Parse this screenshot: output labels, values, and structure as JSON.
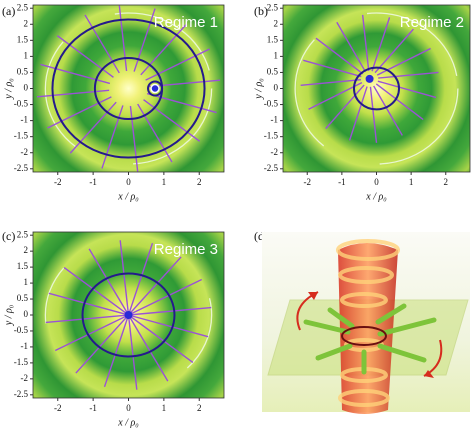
{
  "chart_data": [
    {
      "type": "field",
      "panel": "(a)",
      "title": "Regime 1",
      "xlabel": "x / ρ₀",
      "ylabel": "y / ρ₀",
      "xlim": [
        -2.7,
        2.7
      ],
      "ylim": [
        -2.6,
        2.6
      ],
      "xticks": [
        -2,
        -1,
        0,
        1,
        2
      ],
      "yticks": [
        2.5,
        2,
        1.5,
        1,
        0.5,
        0,
        -0.5,
        -1,
        -1.5,
        -2,
        -2.5
      ],
      "marker": {
        "x": 0.75,
        "y": 0
      },
      "circles": [
        0.95,
        2.15
      ]
    },
    {
      "type": "field",
      "panel": "(b)",
      "title": "Regime 2",
      "xlabel": "x / ρ₀",
      "ylabel": "y / ρ₀",
      "xlim": [
        -2.7,
        2.7
      ],
      "ylim": [
        -2.6,
        2.6
      ],
      "xticks": [
        -2,
        -1,
        0,
        1,
        2
      ],
      "yticks": [
        2.5,
        2,
        1.5,
        1,
        0.5,
        0,
        -0.5,
        -1,
        -1.5,
        -2,
        -2.5
      ],
      "marker": {
        "x": -0.2,
        "y": 0.3
      },
      "circles": [
        0.65
      ]
    },
    {
      "type": "field",
      "panel": "(c)",
      "title": "Regime 3",
      "xlabel": "x / ρ₀",
      "ylabel": "y / ρ₀",
      "xlim": [
        -2.7,
        2.7
      ],
      "ylim": [
        -2.6,
        2.6
      ],
      "xticks": [
        -2,
        -1,
        0,
        1,
        2
      ],
      "yticks": [
        2.5,
        2,
        1.5,
        1,
        0.5,
        0,
        -0.5,
        -1,
        -1.5,
        -2,
        -2.5
      ],
      "marker": {
        "x": 0,
        "y": 0
      },
      "circles": [
        1.3
      ]
    }
  ],
  "panel_d": {
    "label": "(d)"
  }
}
